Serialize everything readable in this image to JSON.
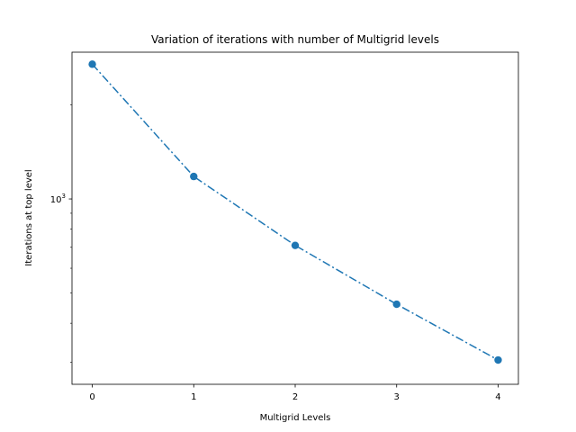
{
  "chart_data": {
    "type": "line",
    "title": "Variation of iterations with number of Multigrid levels",
    "xlabel": "Multigrid Levels",
    "ylabel": "Iterations at top level",
    "x": [
      0,
      1,
      2,
      3,
      4
    ],
    "series": [
      {
        "values": [
          2700,
          1180,
          710,
          460,
          305
        ],
        "color": "#1f77b4",
        "marker": "circle",
        "linestyle": "dash-dot"
      }
    ],
    "xticks": [
      "0",
      "1",
      "2",
      "3",
      "4"
    ],
    "xlim": [
      -0.2,
      4.2
    ],
    "ylim": [
      255,
      2950
    ],
    "yscale": "log",
    "ytick_major": {
      "value": 1000,
      "base": "10",
      "exponent": "3"
    },
    "grid": false
  }
}
